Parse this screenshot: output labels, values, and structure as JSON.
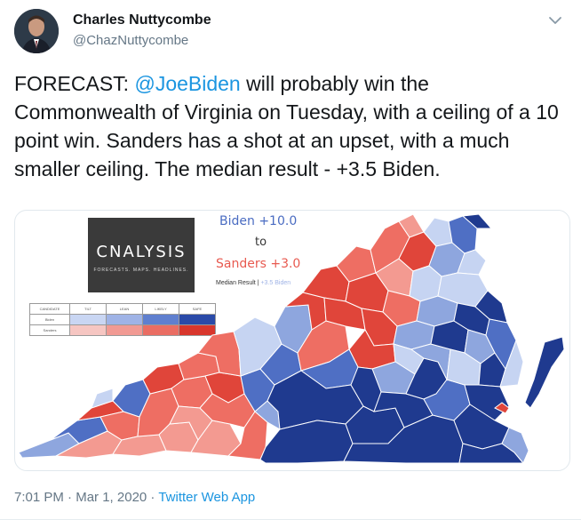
{
  "author": {
    "name": "Charles Nuttycombe",
    "handle": "@ChazNuttycombe"
  },
  "tweet": {
    "prefix": "FORECAST: ",
    "mention": "@JoeBiden",
    "body": " will probably win the Commonwealth of Virginia on Tuesday, with a ceiling of a 10 point win. Sanders has a shot at an upset, with a much smaller ceiling. The median result - +3.5 Biden."
  },
  "media": {
    "logo_text": "CNALYSIS",
    "logo_tagline": "FORECASTS. MAPS. HEADLINES.",
    "biden_line": "Biden +10.0",
    "to_line": "to",
    "sanders_line": "Sanders +3.0",
    "median_label": "Median Result | ",
    "median_value": "+3.5 Biden",
    "legend": {
      "headers": [
        "CANDIDATE",
        "TILT",
        "LEAN",
        "LIKELY",
        "SAFE"
      ],
      "rows": [
        {
          "candidate": "Biden",
          "colors": [
            "#c9d6f3",
            "#9fb3e6",
            "#5f7fcf",
            "#2a4aa8"
          ]
        },
        {
          "candidate": "Sanders",
          "colors": [
            "#f6c6c2",
            "#f19a93",
            "#ea6d63",
            "#d8362c"
          ]
        }
      ]
    }
  },
  "meta": {
    "time": "7:01 PM",
    "sep1": " · ",
    "date": "Mar 1, 2020",
    "sep2": " · ",
    "app": "Twitter Web App"
  },
  "colors": {
    "safe_biden": "#1f3a8f",
    "likely_biden": "#4f6fc4",
    "lean_biden": "#8ea6de",
    "tilt_biden": "#c6d4f2",
    "safe_sanders": "#e0453a",
    "likely_sanders": "#ee6e63",
    "lean_sanders": "#f39a91",
    "link": "#1b95e0"
  }
}
